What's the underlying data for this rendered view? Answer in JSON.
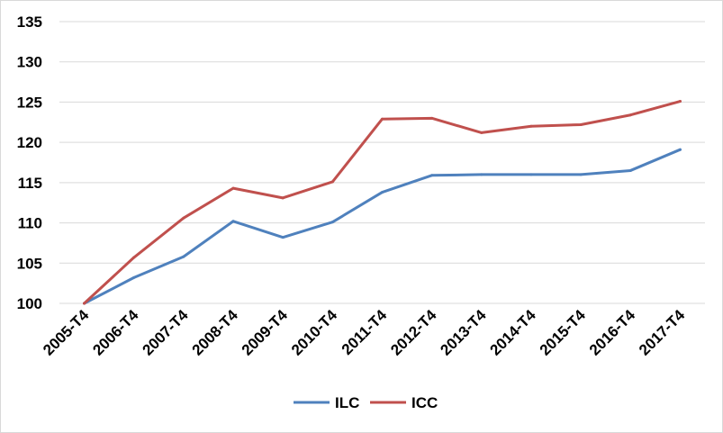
{
  "chart_data": {
    "type": "line",
    "title": "",
    "xlabel": "",
    "ylabel": "",
    "x": [
      "2005-T4",
      "2006-T4",
      "2007-T4",
      "2008-T4",
      "2009-T4",
      "2010-T4",
      "2011-T4",
      "2012-T4",
      "2013-T4",
      "2014-T4",
      "2015-T4",
      "2016-T4",
      "2017-T4"
    ],
    "series": [
      {
        "name": "ILC",
        "color": "#4f81bd",
        "values": [
          100,
          103.2,
          105.8,
          110.2,
          108.2,
          110.1,
          113.8,
          115.9,
          116.0,
          116.0,
          116.0,
          116.5,
          119.1
        ]
      },
      {
        "name": "ICC",
        "color": "#c0504d",
        "values": [
          100,
          105.7,
          110.6,
          114.3,
          113.1,
          115.1,
          122.9,
          123.0,
          121.2,
          122.0,
          122.2,
          123.4,
          125.1
        ]
      }
    ],
    "ylim": [
      100,
      135
    ],
    "yticks": [
      100,
      105,
      110,
      115,
      120,
      125,
      130,
      135
    ],
    "grid": true,
    "legend": "bottom"
  }
}
